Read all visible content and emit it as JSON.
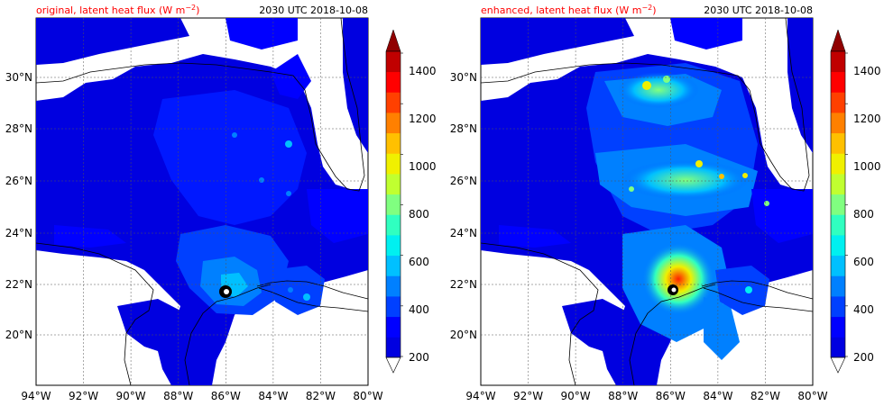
{
  "panels": [
    {
      "id": "original",
      "title_left": "original, latent heat flux (W m",
      "title_unit_sup": "−2",
      "title_close": ")",
      "title_right": "2030 UTC 2018-10-08"
    },
    {
      "id": "enhanced",
      "title_left": "enhanced, latent heat flux (W m",
      "title_unit_sup": "−2",
      "title_close": ")",
      "title_right": "2030 UTC 2018-10-08"
    }
  ],
  "map": {
    "lon_range": [
      -94,
      -80
    ],
    "lat_range": [
      18.2,
      32.0
    ],
    "lon_labels": [
      "94°W",
      "92°W",
      "90°W",
      "88°W",
      "86°W",
      "84°W",
      "82°W",
      "80°W"
    ],
    "lat_labels": [
      "20°N",
      "22°N",
      "24°N",
      "26°N",
      "28°N",
      "30°N"
    ],
    "land_color": "#ffffff",
    "gridlines": "dashed"
  },
  "colorbar": {
    "labels": [
      "200",
      "400",
      "600",
      "800",
      "1000",
      "1200",
      "1400"
    ],
    "extend": "both",
    "colors": [
      "#00009c",
      "#0000e0",
      "#0000ff",
      "#0040ff",
      "#0080ff",
      "#00c0ff",
      "#00f0f0",
      "#30ffc0",
      "#80ff80",
      "#c0ff30",
      "#f0f000",
      "#ffc000",
      "#ff8000",
      "#ff4000",
      "#ff0000",
      "#c00000",
      "#900000"
    ]
  }
}
